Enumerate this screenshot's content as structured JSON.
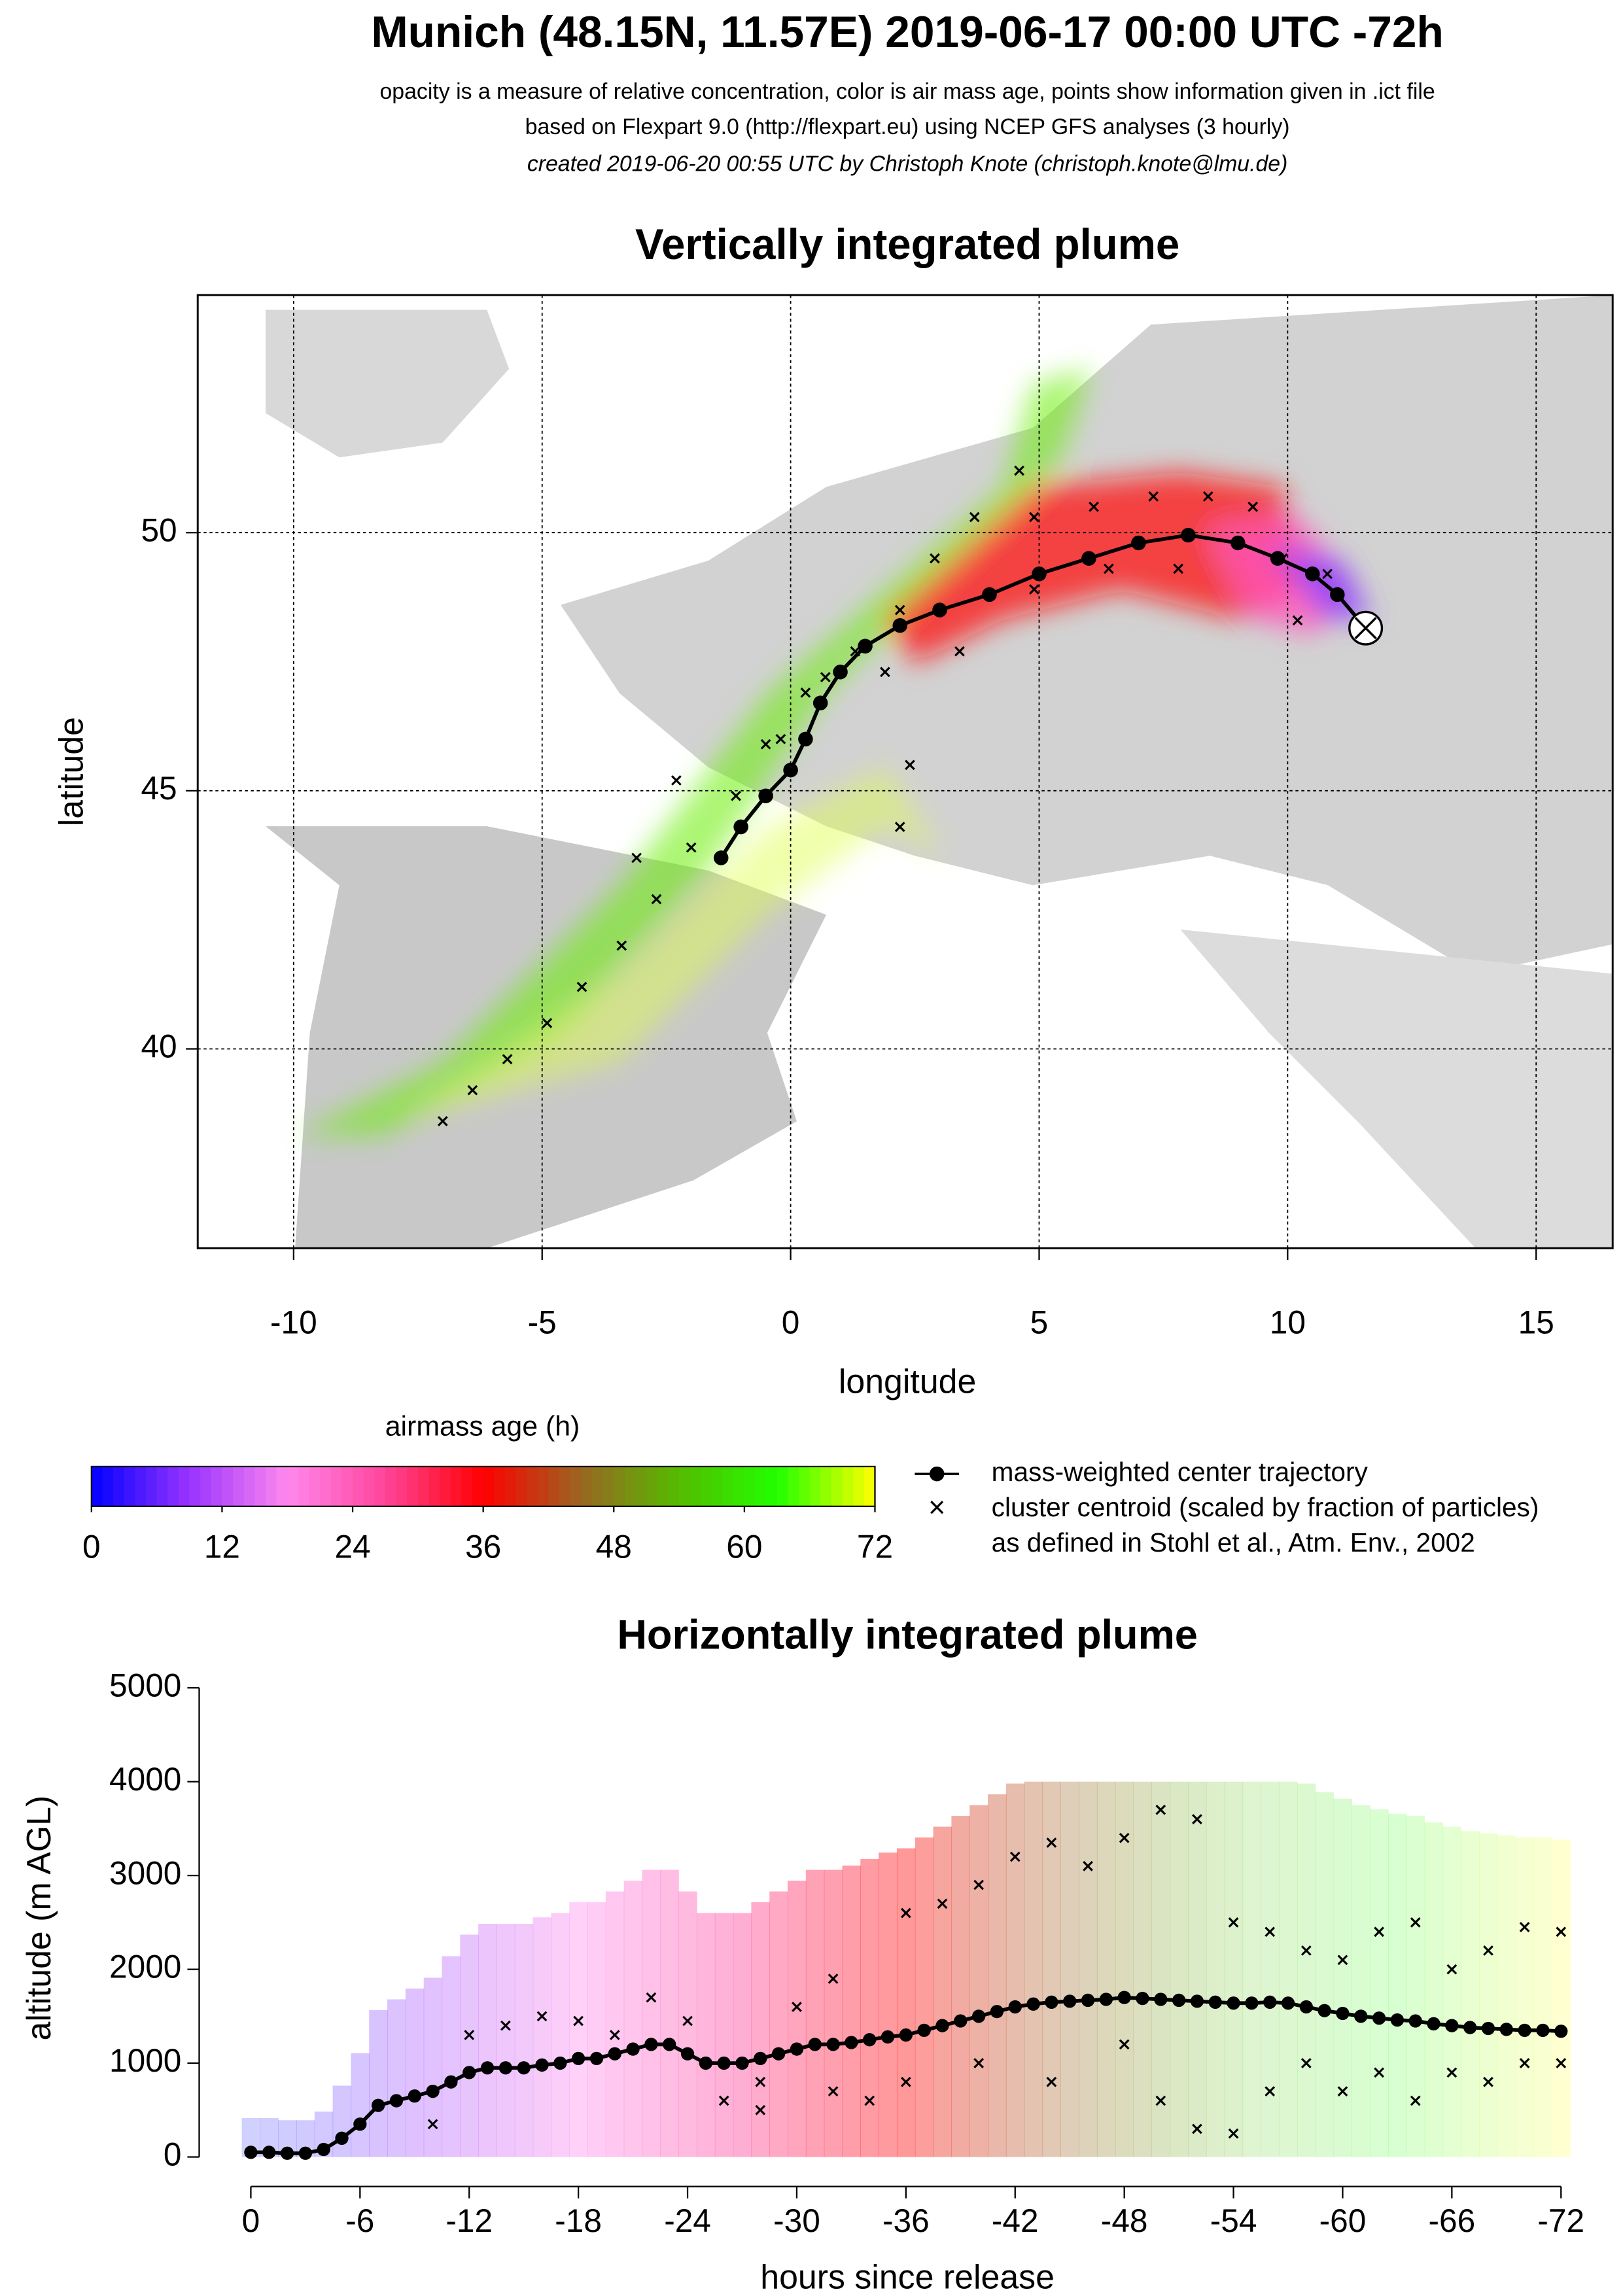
{
  "header": {
    "title": "Munich (48.15N, 11.57E) 2019-06-17 00:00 UTC -72h",
    "lines": [
      "opacity is a measure of relative concentration, color is air mass age, points show information given in .ict file",
      "based on Flexpart 9.0 (http://flexpart.eu) using NCEP GFS analyses (3 hourly)",
      "created 2019-06-20 00:55 UTC by Christoph Knote (christoph.knote@lmu.de)"
    ]
  },
  "chart_data": [
    {
      "type": "map",
      "title": "Vertically integrated plume",
      "x_label": "longitude",
      "y_label": "latitude",
      "xlim": [
        -11.93,
        16.54
      ],
      "ylim": [
        36.14,
        54.6
      ],
      "xticks": [
        -10,
        -5,
        0,
        5,
        10,
        15
      ],
      "yticks": [
        40,
        45,
        50
      ],
      "grid": true,
      "series": [
        {
          "name": "mass-weighted center trajectory",
          "color": "#000000",
          "x": [
            -1.4,
            -1.0,
            -0.5,
            0.0,
            0.3,
            0.6,
            1.0,
            1.5,
            2.2,
            3.0,
            4.0,
            5.0,
            6.0,
            7.0,
            8.0,
            9.0,
            9.8,
            10.5,
            11.0,
            11.57
          ],
          "y": [
            43.7,
            44.3,
            44.9,
            45.4,
            46.0,
            46.7,
            47.3,
            47.8,
            48.2,
            48.5,
            48.8,
            49.2,
            49.5,
            49.8,
            49.95,
            49.8,
            49.5,
            49.2,
            48.8,
            48.15
          ]
        },
        {
          "name": "cluster centroid (scaled by fraction of particles)",
          "color": "#000000",
          "x": [
            -7.0,
            -6.4,
            -5.7,
            -4.9,
            -4.2,
            -3.4,
            -2.7,
            -2.0,
            -1.1,
            -0.5,
            0.3,
            1.3,
            2.2,
            2.9,
            3.7,
            4.6,
            4.9,
            6.1,
            7.3,
            8.4,
            9.3,
            9.9,
            10.8,
            1.9,
            3.4,
            4.9,
            6.4,
            7.8,
            2.4,
            2.2,
            -2.3,
            -3.1,
            -0.2,
            0.7,
            10.2
          ],
          "y": [
            38.6,
            39.2,
            39.8,
            40.5,
            41.2,
            42.0,
            42.9,
            43.9,
            44.9,
            45.9,
            46.9,
            47.7,
            48.5,
            49.5,
            50.3,
            51.2,
            50.3,
            50.5,
            50.7,
            50.7,
            50.5,
            49.5,
            49.2,
            47.3,
            47.7,
            48.9,
            49.3,
            49.3,
            45.5,
            44.3,
            45.2,
            43.7,
            46.0,
            47.2,
            48.3
          ]
        }
      ],
      "legend_note": "as defined in Stohl et al., Atm. Env., 2002",
      "colorbar": {
        "title": "airmass age (h)",
        "lim": [
          0,
          72
        ],
        "ticks": [
          0,
          12,
          24,
          36,
          48,
          60,
          72
        ],
        "colors": [
          "#0000ff",
          "#9933ff",
          "#ff88ee",
          "#ff4499",
          "#ff0000",
          "#996622",
          "#55bb00",
          "#22ff00",
          "#ffff00"
        ]
      }
    },
    {
      "type": "profile",
      "title": "Horizontally integrated plume",
      "x_label": "hours since release",
      "y_label": "altitude (m AGL)",
      "xlim": [
        0,
        -72
      ],
      "ylim": [
        0,
        5000
      ],
      "xticks": [
        0,
        -6,
        -12,
        -18,
        -24,
        -30,
        -36,
        -42,
        -48,
        -54,
        -60,
        -66,
        -72
      ],
      "yticks": [
        0,
        1000,
        2000,
        3000,
        4000,
        5000
      ],
      "series": [
        {
          "name": "mass-weighted center trajectory",
          "color": "#000000",
          "x": [
            0,
            -1,
            -2,
            -3,
            -4,
            -5,
            -6,
            -7,
            -8,
            -9,
            -10,
            -11,
            -12,
            -13,
            -14,
            -15,
            -16,
            -17,
            -18,
            -19,
            -20,
            -21,
            -22,
            -23,
            -24,
            -25,
            -26,
            -27,
            -28,
            -29,
            -30,
            -31,
            -32,
            -33,
            -34,
            -35,
            -36,
            -37,
            -38,
            -39,
            -40,
            -41,
            -42,
            -43,
            -44,
            -45,
            -46,
            -47,
            -48,
            -49,
            -50,
            -51,
            -52,
            -53,
            -54,
            -55,
            -56,
            -57,
            -58,
            -59,
            -60,
            -61,
            -62,
            -63,
            -64,
            -65,
            -66,
            -67,
            -68,
            -69,
            -70,
            -71,
            -72
          ],
          "y": [
            50,
            50,
            40,
            40,
            80,
            200,
            350,
            550,
            600,
            650,
            700,
            800,
            900,
            950,
            950,
            950,
            980,
            1000,
            1050,
            1050,
            1100,
            1150,
            1200,
            1200,
            1100,
            1000,
            1000,
            1000,
            1050,
            1100,
            1150,
            1200,
            1200,
            1220,
            1250,
            1280,
            1300,
            1350,
            1400,
            1450,
            1500,
            1550,
            1600,
            1630,
            1650,
            1660,
            1670,
            1680,
            1700,
            1690,
            1680,
            1670,
            1660,
            1650,
            1640,
            1640,
            1650,
            1640,
            1600,
            1560,
            1530,
            1500,
            1480,
            1460,
            1450,
            1420,
            1400,
            1380,
            1370,
            1360,
            1350,
            1350,
            1340
          ]
        },
        {
          "name": "cluster centroid (scaled by fraction of particles)",
          "color": "#000000",
          "x": [
            -10,
            -12,
            -14,
            -16,
            -18,
            -20,
            -22,
            -24,
            -26,
            -28,
            -30,
            -32,
            -34,
            -36,
            -38,
            -40,
            -42,
            -44,
            -46,
            -48,
            -50,
            -52,
            -54,
            -56,
            -58,
            -60,
            -62,
            -64,
            -66,
            -68,
            -70,
            -72,
            -44,
            -48,
            -50,
            -52,
            -54,
            -56,
            -58,
            -60,
            -62,
            -64,
            -66,
            -68,
            -70,
            -72,
            -40,
            -36,
            -32,
            -28
          ],
          "y": [
            350,
            1300,
            1400,
            1500,
            1450,
            1300,
            1700,
            1450,
            600,
            500,
            1600,
            1900,
            600,
            2600,
            2700,
            2900,
            3200,
            3350,
            3100,
            3400,
            3700,
            3600,
            2500,
            2400,
            2200,
            2100,
            2400,
            2500,
            2000,
            2200,
            2450,
            2400,
            800,
            1200,
            600,
            300,
            250,
            700,
            1000,
            700,
            900,
            600,
            900,
            800,
            1000,
            1000,
            1000,
            800,
            700,
            800
          ]
        }
      ]
    }
  ]
}
